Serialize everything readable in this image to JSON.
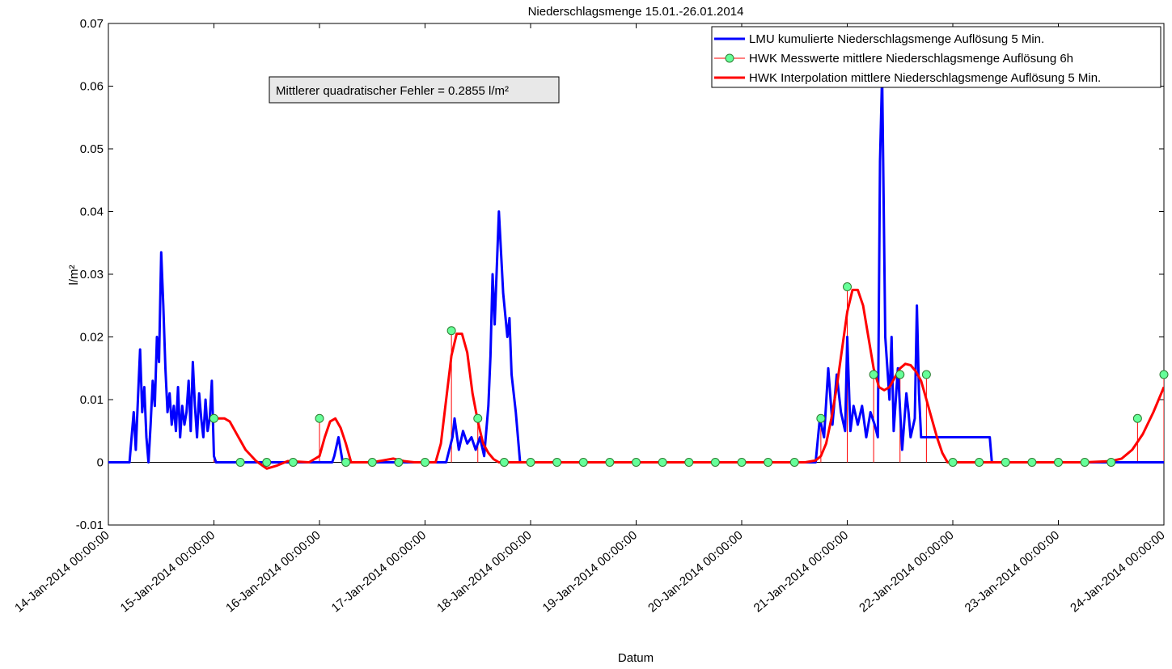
{
  "chart_data": {
    "type": "line",
    "title": "Niederschlagsmenge 15.01.-26.01.2014",
    "xlabel": "Datum",
    "ylabel": "l/m²",
    "ylim": [
      -0.01,
      0.07
    ],
    "yticks": [
      -0.01,
      0,
      0.01,
      0.02,
      0.03,
      0.04,
      0.05,
      0.06,
      0.07
    ],
    "ytick_labels": [
      "-0.01",
      "0",
      "0.01",
      "0.02",
      "0.03",
      "0.04",
      "0.05",
      "0.06",
      "0.07"
    ],
    "xlim": [
      "14-Jan-2014 00:00:00",
      "24-Jan-2014 00:00:00"
    ],
    "xtick_labels": [
      "14-Jan-2014 00:00:00",
      "15-Jan-2014 00:00:00",
      "16-Jan-2014 00:00:00",
      "17-Jan-2014 00:00:00",
      "18-Jan-2014 00:00:00",
      "19-Jan-2014 00:00:00",
      "20-Jan-2014 00:00:00",
      "21-Jan-2014 00:00:00",
      "22-Jan-2014 00:00:00",
      "23-Jan-2014 00:00:00",
      "24-Jan-2014 00:00:00"
    ],
    "x_unit": "days after 14-Jan-2014 00:00:00",
    "grid": false,
    "legend_position": "top-right",
    "annotation": "Mittlerer quadratischer Fehler = 0.2855 l/m²",
    "series": [
      {
        "name": "LMU kumulierte Niederschlagsmenge Auflösung 5 Min.",
        "color": "#0000ff",
        "style": "line",
        "x": [
          0,
          0.2,
          0.22,
          0.24,
          0.26,
          0.28,
          0.3,
          0.32,
          0.34,
          0.36,
          0.38,
          0.4,
          0.42,
          0.44,
          0.46,
          0.48,
          0.5,
          0.52,
          0.54,
          0.56,
          0.58,
          0.6,
          0.62,
          0.64,
          0.66,
          0.68,
          0.7,
          0.72,
          0.74,
          0.76,
          0.78,
          0.8,
          0.82,
          0.84,
          0.86,
          0.88,
          0.9,
          0.92,
          0.94,
          0.96,
          0.98,
          1.0,
          1.02,
          1.05,
          1.1,
          1.5,
          2.0,
          2.12,
          2.14,
          2.18,
          2.22,
          3.0,
          3.2,
          3.26,
          3.28,
          3.32,
          3.36,
          3.4,
          3.44,
          3.48,
          3.52,
          3.56,
          3.6,
          3.62,
          3.64,
          3.66,
          3.7,
          3.74,
          3.78,
          3.8,
          3.82,
          3.86,
          3.9,
          4.0,
          5.0,
          6.0,
          6.7,
          6.74,
          6.78,
          6.82,
          6.86,
          6.9,
          6.94,
          6.98,
          7.0,
          7.03,
          7.06,
          7.1,
          7.14,
          7.18,
          7.22,
          7.26,
          7.29,
          7.31,
          7.33,
          7.36,
          7.4,
          7.42,
          7.44,
          7.48,
          7.52,
          7.56,
          7.58,
          7.6,
          7.64,
          7.66,
          7.68,
          7.7,
          8.0,
          8.35,
          8.37,
          8.5,
          9.0,
          10.0
        ],
        "y": [
          0,
          0,
          0.004,
          0.008,
          0.002,
          0.01,
          0.018,
          0.008,
          0.012,
          0.004,
          0,
          0.006,
          0.013,
          0.009,
          0.02,
          0.016,
          0.0335,
          0.025,
          0.015,
          0.008,
          0.011,
          0.006,
          0.009,
          0.005,
          0.012,
          0.004,
          0.009,
          0.006,
          0.008,
          0.013,
          0.005,
          0.016,
          0.009,
          0.004,
          0.011,
          0.007,
          0.004,
          0.01,
          0.005,
          0.007,
          0.013,
          0.001,
          0,
          0,
          0,
          0,
          0,
          0,
          0.001,
          0.004,
          0,
          0,
          0,
          0.004,
          0.007,
          0.002,
          0.005,
          0.003,
          0.004,
          0.002,
          0.004,
          0.001,
          0.009,
          0.017,
          0.03,
          0.022,
          0.04,
          0.027,
          0.02,
          0.023,
          0.014,
          0.008,
          0,
          0,
          0,
          0,
          0,
          0.007,
          0.004,
          0.015,
          0.006,
          0.014,
          0.008,
          0.005,
          0.02,
          0.005,
          0.009,
          0.006,
          0.009,
          0.004,
          0.008,
          0.006,
          0.004,
          0.048,
          0.062,
          0.02,
          0.01,
          0.02,
          0.005,
          0.015,
          0.002,
          0.011,
          0.008,
          0.004,
          0.007,
          0.025,
          0.011,
          0.004,
          0.004,
          0.004,
          0,
          0,
          0,
          0
        ]
      },
      {
        "name": "HWK Messwerte mittlere Niederschlagsmenge Auflösung 6h",
        "color": "#ff0000",
        "marker_color": "#66ff99",
        "style": "stem",
        "x": [
          1.0,
          1.25,
          1.5,
          1.75,
          2.0,
          2.25,
          2.5,
          2.75,
          3.0,
          3.25,
          3.5,
          3.75,
          4.0,
          4.25,
          4.5,
          4.75,
          5.0,
          5.25,
          5.5,
          5.75,
          6.0,
          6.25,
          6.5,
          6.75,
          7.0,
          7.25,
          7.5,
          7.75,
          8.0,
          8.25,
          8.5,
          8.75,
          9.0,
          9.25,
          9.5,
          9.75,
          10.0
        ],
        "y": [
          0.007,
          0,
          0,
          0,
          0.007,
          0,
          0,
          0,
          0,
          0.021,
          0.007,
          0,
          0,
          0,
          0,
          0,
          0,
          0,
          0,
          0,
          0,
          0,
          0,
          0.007,
          0.028,
          0.014,
          0.014,
          0.014,
          0,
          0,
          0,
          0,
          0,
          0,
          0,
          0.007,
          0.014
        ]
      },
      {
        "name": "HWK Interpolation mittlere Niederschlagsmenge Auflösung 5 Min.",
        "color": "#ff0000",
        "style": "line",
        "x": [
          1.0,
          1.05,
          1.1,
          1.15,
          1.2,
          1.3,
          1.4,
          1.5,
          1.6,
          1.7,
          1.8,
          1.9,
          2.0,
          2.05,
          2.1,
          2.15,
          2.2,
          2.25,
          2.3,
          2.4,
          2.5,
          2.6,
          2.7,
          2.8,
          2.9,
          3.0,
          3.05,
          3.1,
          3.15,
          3.2,
          3.25,
          3.3,
          3.35,
          3.4,
          3.45,
          3.5,
          3.55,
          3.6,
          3.65,
          3.7,
          3.75,
          3.8,
          4.0,
          5.0,
          6.0,
          6.5,
          6.6,
          6.7,
          6.75,
          6.8,
          6.85,
          6.9,
          6.95,
          7.0,
          7.05,
          7.1,
          7.15,
          7.2,
          7.25,
          7.3,
          7.35,
          7.4,
          7.45,
          7.5,
          7.55,
          7.6,
          7.65,
          7.7,
          7.75,
          7.8,
          7.85,
          7.9,
          7.95,
          8.0,
          8.05,
          8.1,
          8.5,
          9.0,
          9.25,
          9.5,
          9.6,
          9.7,
          9.8,
          9.9,
          10.0
        ],
        "y": [
          0.007,
          0.007,
          0.007,
          0.0065,
          0.005,
          0.002,
          0.0002,
          -0.001,
          -0.0005,
          0.0002,
          0.0001,
          0,
          0.001,
          0.004,
          0.0065,
          0.007,
          0.0055,
          0.003,
          0,
          0,
          0,
          0.0003,
          0.0006,
          0.0002,
          0,
          0,
          0,
          0,
          0.003,
          0.01,
          0.017,
          0.0205,
          0.0205,
          0.0175,
          0.011,
          0.0065,
          0.003,
          0.0015,
          0.0005,
          0,
          0,
          0,
          0,
          0,
          0,
          0,
          0,
          0.0003,
          0.001,
          0.003,
          0.007,
          0.012,
          0.018,
          0.024,
          0.0275,
          0.0275,
          0.025,
          0.02,
          0.015,
          0.012,
          0.0115,
          0.012,
          0.0135,
          0.015,
          0.0157,
          0.0155,
          0.0145,
          0.013,
          0.01,
          0.007,
          0.004,
          0.0015,
          0,
          0,
          0,
          0,
          0,
          0,
          0,
          0.0002,
          0.0006,
          0.002,
          0.0045,
          0.008,
          0.012
        ]
      }
    ]
  }
}
